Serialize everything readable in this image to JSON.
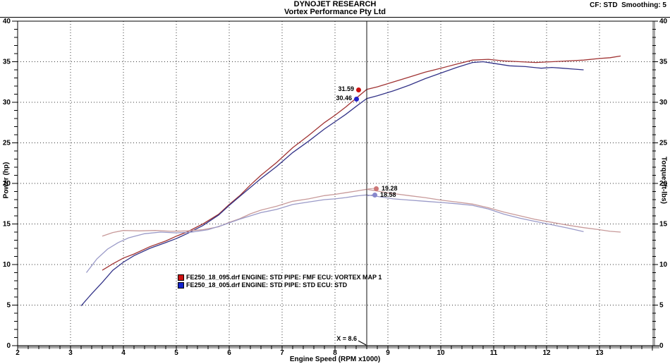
{
  "header": {
    "title_line1": "DYNOJET RESEARCH",
    "title_line2": "Vortex Performance Pty Ltd",
    "correction_info": "CF: STD  Smoothing: 5"
  },
  "chart_data": {
    "type": "line",
    "title": "DYNOJET RESEARCH",
    "subtitle": "Vortex Performance Pty Ltd",
    "xlabel": "Engine Speed (RPM x1000)",
    "ylabel_left": "Power (hp)",
    "ylabel_right": "Torque (ft-lbs)",
    "xlim": [
      2,
      14
    ],
    "ylim": [
      0,
      40
    ],
    "x_ticks": [
      2,
      3,
      4,
      5,
      6,
      7,
      8,
      9,
      10,
      11,
      12,
      13
    ],
    "y_ticks": [
      0,
      5,
      10,
      15,
      20,
      25,
      30,
      35,
      40
    ],
    "grid": "dotted",
    "legend_position": "inside-lower-center",
    "cursor_x": 8.6,
    "cursor_label": "X = 8.6",
    "cursor_values": {
      "power_vortex": "31.59",
      "power_std": "30.46",
      "torque_vortex": "19.28",
      "torque_std": "18.58"
    },
    "series": [
      {
        "key": "power_vortex",
        "name": "FE250_18_095.drf Power (hp)",
        "color": "#a03333",
        "points": [
          [
            3.6,
            9.3
          ],
          [
            3.8,
            10.1
          ],
          [
            4.0,
            10.8
          ],
          [
            4.2,
            11.3
          ],
          [
            4.5,
            12.2
          ],
          [
            4.8,
            12.9
          ],
          [
            5.0,
            13.5
          ],
          [
            5.2,
            14.0
          ],
          [
            5.5,
            15.0
          ],
          [
            5.8,
            16.2
          ],
          [
            6.0,
            17.4
          ],
          [
            6.2,
            18.5
          ],
          [
            6.4,
            19.8
          ],
          [
            6.6,
            21.0
          ],
          [
            6.9,
            22.6
          ],
          [
            7.2,
            24.4
          ],
          [
            7.5,
            25.9
          ],
          [
            7.8,
            27.5
          ],
          [
            8.0,
            28.4
          ],
          [
            8.2,
            29.4
          ],
          [
            8.4,
            30.5
          ],
          [
            8.6,
            31.59
          ],
          [
            8.8,
            31.9
          ],
          [
            9.1,
            32.5
          ],
          [
            9.4,
            33.1
          ],
          [
            9.7,
            33.7
          ],
          [
            10.0,
            34.2
          ],
          [
            10.3,
            34.7
          ],
          [
            10.6,
            35.2
          ],
          [
            10.9,
            35.3
          ],
          [
            11.2,
            35.1
          ],
          [
            11.5,
            35.0
          ],
          [
            11.8,
            34.9
          ],
          [
            12.1,
            35.0
          ],
          [
            12.4,
            35.1
          ],
          [
            12.7,
            35.2
          ],
          [
            13.0,
            35.4
          ],
          [
            13.2,
            35.5
          ],
          [
            13.4,
            35.7
          ]
        ]
      },
      {
        "key": "power_std",
        "name": "FE250_18_005.drf Power (hp)",
        "color": "#333388",
        "points": [
          [
            3.2,
            4.9
          ],
          [
            3.4,
            6.4
          ],
          [
            3.6,
            7.8
          ],
          [
            3.8,
            9.3
          ],
          [
            4.0,
            10.3
          ],
          [
            4.2,
            11.1
          ],
          [
            4.5,
            12.0
          ],
          [
            4.8,
            12.7
          ],
          [
            5.0,
            13.2
          ],
          [
            5.2,
            13.8
          ],
          [
            5.5,
            14.8
          ],
          [
            5.8,
            16.1
          ],
          [
            6.0,
            17.3
          ],
          [
            6.2,
            18.4
          ],
          [
            6.4,
            19.5
          ],
          [
            6.6,
            20.6
          ],
          [
            6.9,
            22.1
          ],
          [
            7.2,
            23.8
          ],
          [
            7.5,
            25.2
          ],
          [
            7.8,
            26.7
          ],
          [
            8.0,
            27.6
          ],
          [
            8.2,
            28.5
          ],
          [
            8.4,
            29.5
          ],
          [
            8.6,
            30.46
          ],
          [
            8.8,
            30.8
          ],
          [
            9.1,
            31.4
          ],
          [
            9.4,
            32.1
          ],
          [
            9.7,
            32.9
          ],
          [
            10.0,
            33.6
          ],
          [
            10.3,
            34.3
          ],
          [
            10.6,
            34.9
          ],
          [
            10.8,
            35.0
          ],
          [
            11.0,
            34.8
          ],
          [
            11.3,
            34.5
          ],
          [
            11.6,
            34.4
          ],
          [
            11.9,
            34.2
          ],
          [
            12.1,
            34.3
          ],
          [
            12.3,
            34.2
          ],
          [
            12.5,
            34.1
          ],
          [
            12.7,
            34.0
          ]
        ]
      },
      {
        "key": "torque_vortex",
        "name": "FE250_18_095.drf Torque (ft-lbs)",
        "color": "#c89a9a",
        "points": [
          [
            3.6,
            13.5
          ],
          [
            3.8,
            13.95
          ],
          [
            4.0,
            14.2
          ],
          [
            4.3,
            14.15
          ],
          [
            4.6,
            14.2
          ],
          [
            4.9,
            14.1
          ],
          [
            5.2,
            14.15
          ],
          [
            5.5,
            14.3
          ],
          [
            5.8,
            14.65
          ],
          [
            6.0,
            15.2
          ],
          [
            6.2,
            15.65
          ],
          [
            6.4,
            16.25
          ],
          [
            6.6,
            16.7
          ],
          [
            6.9,
            17.2
          ],
          [
            7.2,
            17.8
          ],
          [
            7.5,
            18.1
          ],
          [
            7.8,
            18.5
          ],
          [
            8.0,
            18.65
          ],
          [
            8.2,
            18.85
          ],
          [
            8.4,
            19.05
          ],
          [
            8.6,
            19.28
          ],
          [
            8.8,
            19.05
          ],
          [
            9.1,
            18.75
          ],
          [
            9.4,
            18.5
          ],
          [
            9.7,
            18.25
          ],
          [
            10.0,
            17.95
          ],
          [
            10.3,
            17.7
          ],
          [
            10.6,
            17.45
          ],
          [
            10.9,
            17.0
          ],
          [
            11.2,
            16.45
          ],
          [
            11.5,
            16.0
          ],
          [
            11.8,
            15.55
          ],
          [
            12.1,
            15.2
          ],
          [
            12.4,
            14.85
          ],
          [
            12.7,
            14.55
          ],
          [
            13.0,
            14.3
          ],
          [
            13.2,
            14.1
          ],
          [
            13.4,
            14.0
          ]
        ]
      },
      {
        "key": "torque_std",
        "name": "FE250_18_005.drf Torque (ft-lbs)",
        "color": "#9a9ac8",
        "points": [
          [
            3.3,
            9.0
          ],
          [
            3.5,
            10.7
          ],
          [
            3.7,
            11.9
          ],
          [
            3.9,
            12.7
          ],
          [
            4.1,
            13.3
          ],
          [
            4.4,
            13.8
          ],
          [
            4.7,
            14.0
          ],
          [
            5.0,
            13.9
          ],
          [
            5.3,
            14.0
          ],
          [
            5.6,
            14.3
          ],
          [
            5.9,
            14.9
          ],
          [
            6.2,
            15.6
          ],
          [
            6.4,
            16.0
          ],
          [
            6.6,
            16.4
          ],
          [
            6.9,
            16.8
          ],
          [
            7.2,
            17.4
          ],
          [
            7.5,
            17.7
          ],
          [
            7.8,
            18.0
          ],
          [
            8.0,
            18.1
          ],
          [
            8.2,
            18.25
          ],
          [
            8.4,
            18.45
          ],
          [
            8.6,
            18.58
          ],
          [
            8.8,
            18.4
          ],
          [
            9.1,
            18.1
          ],
          [
            9.4,
            17.95
          ],
          [
            9.7,
            17.8
          ],
          [
            10.0,
            17.65
          ],
          [
            10.3,
            17.5
          ],
          [
            10.6,
            17.3
          ],
          [
            10.9,
            16.85
          ],
          [
            11.2,
            16.2
          ],
          [
            11.5,
            15.7
          ],
          [
            11.8,
            15.3
          ],
          [
            12.1,
            14.9
          ],
          [
            12.4,
            14.5
          ],
          [
            12.7,
            14.05
          ]
        ]
      }
    ]
  },
  "legend": {
    "items": [
      {
        "label": "FE250_18_095.drf ENGINE: STD PIPE: FMF ECU: VORTEX MAP 1",
        "color": "#cc1111"
      },
      {
        "label": "FE250_18_005.drf ENGINE: STD PIPE: STD ECU: STD",
        "color": "#1122cc"
      }
    ]
  }
}
